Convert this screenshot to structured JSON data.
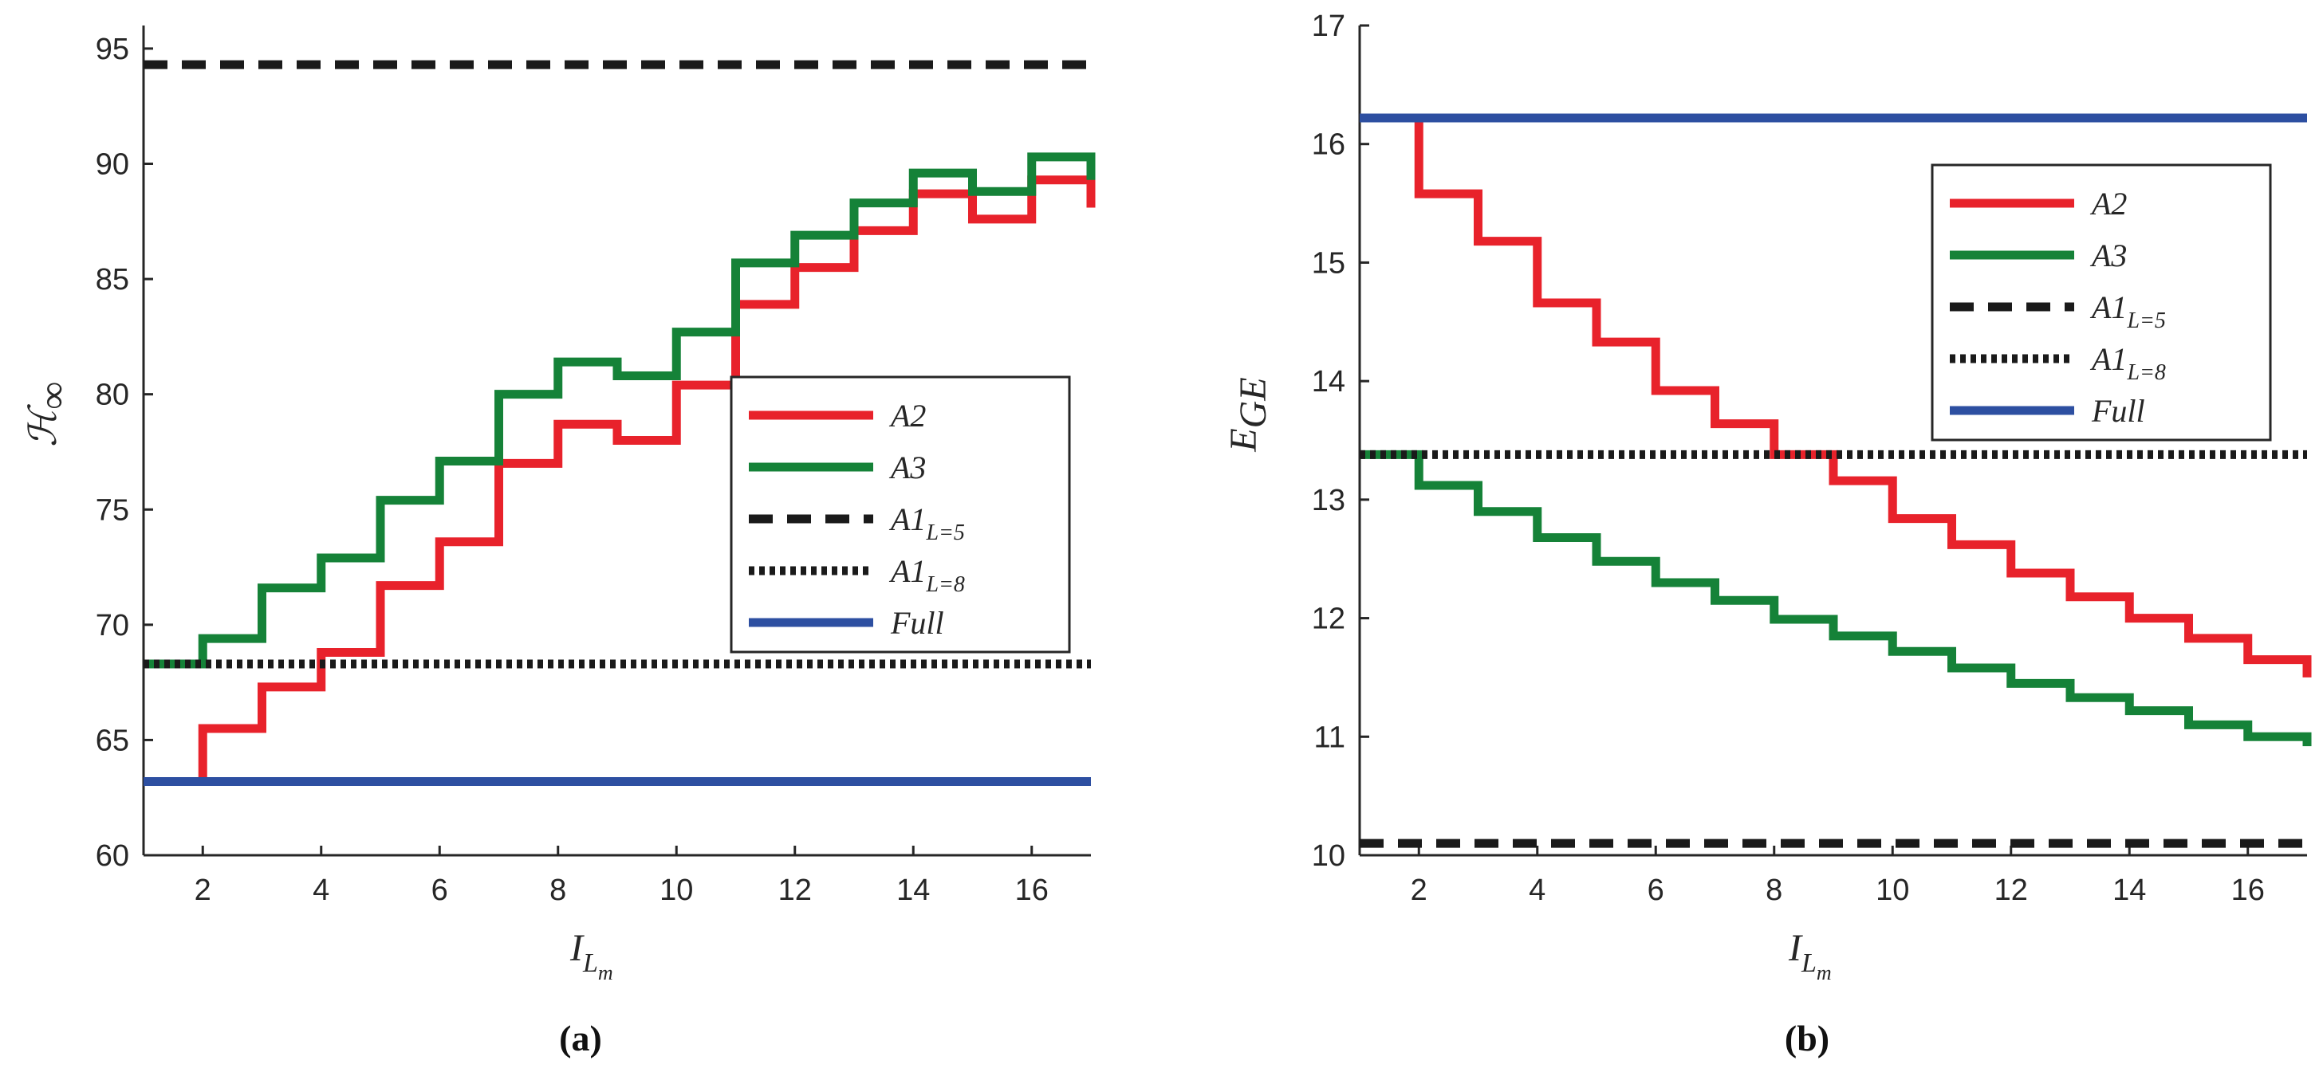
{
  "colors": {
    "A2": "#e8222b",
    "A3": "#158238",
    "full": "#2d4fa1",
    "black": "#1a1a1a"
  },
  "chart_data": [
    {
      "type": "line",
      "panel": "a",
      "caption": "(a)",
      "xlabel_main": "I",
      "xlabel_sub": "L",
      "xlabel_subsub": "m",
      "ylabel_main": "ℋ",
      "ylabel_sub": "∞",
      "xlim": [
        1,
        17
      ],
      "ylim": [
        60,
        96
      ],
      "xticks": [
        2,
        4,
        6,
        8,
        10,
        12,
        14,
        16
      ],
      "yticks": [
        60,
        65,
        70,
        75,
        80,
        85,
        90,
        95
      ],
      "step_x": [
        1,
        2,
        3,
        4,
        5,
        6,
        7,
        8,
        9,
        10,
        11,
        12,
        13,
        14,
        15,
        16,
        17
      ],
      "series": [
        {
          "name": "A2",
          "name_sub": "",
          "style": "step",
          "color": "#e8222b",
          "values": [
            63.2,
            65.5,
            67.3,
            68.8,
            71.7,
            73.6,
            77.0,
            78.7,
            78.0,
            80.4,
            83.9,
            85.5,
            87.1,
            88.7,
            87.6,
            89.3,
            88.1
          ]
        },
        {
          "name": "A3",
          "name_sub": "",
          "style": "step",
          "color": "#158238",
          "values": [
            68.3,
            69.4,
            71.6,
            72.9,
            75.4,
            77.1,
            80.0,
            81.4,
            80.8,
            82.7,
            85.7,
            86.9,
            88.3,
            89.6,
            88.8,
            90.3,
            89.3
          ]
        },
        {
          "name": "A1",
          "name_sub": "L=5",
          "style": "dashed",
          "color": "#1a1a1a",
          "values": [
            94.3
          ]
        },
        {
          "name": "A1",
          "name_sub": "L=8",
          "style": "dotted",
          "color": "#1a1a1a",
          "values": [
            68.3
          ]
        },
        {
          "name": "Full",
          "name_sub": "",
          "style": "solid",
          "color": "#2d4fa1",
          "values": [
            63.2
          ]
        }
      ],
      "legend": "center-right"
    },
    {
      "type": "line",
      "panel": "b",
      "caption": "(b)",
      "xlabel_main": "I",
      "xlabel_sub": "L",
      "xlabel_subsub": "m",
      "ylabel_main": "E",
      "ylabel_sub": "GE",
      "xlim": [
        1,
        17
      ],
      "ylim": [
        10,
        17
      ],
      "xticks": [
        2,
        4,
        6,
        8,
        10,
        12,
        14,
        16
      ],
      "yticks": [
        10,
        11,
        12,
        13,
        14,
        15,
        16,
        17
      ],
      "step_x": [
        1,
        2,
        3,
        4,
        5,
        6,
        7,
        8,
        9,
        10,
        11,
        12,
        13,
        14,
        15,
        16,
        17
      ],
      "series": [
        {
          "name": "A2",
          "name_sub": "",
          "style": "step",
          "color": "#e8222b",
          "values": [
            16.22,
            15.58,
            15.18,
            14.66,
            14.33,
            13.92,
            13.64,
            13.38,
            13.16,
            12.84,
            12.62,
            12.38,
            12.18,
            12.0,
            11.83,
            11.65,
            11.5
          ]
        },
        {
          "name": "A3",
          "name_sub": "",
          "style": "step",
          "color": "#158238",
          "values": [
            13.38,
            13.12,
            12.9,
            12.68,
            12.48,
            12.3,
            12.15,
            11.99,
            11.85,
            11.72,
            11.58,
            11.45,
            11.33,
            11.22,
            11.1,
            11.0,
            10.92
          ]
        },
        {
          "name": "A1",
          "name_sub": "L=5",
          "style": "dashed",
          "color": "#1a1a1a",
          "values": [
            10.1
          ]
        },
        {
          "name": "A1",
          "name_sub": "L=8",
          "style": "dotted",
          "color": "#1a1a1a",
          "values": [
            13.38
          ]
        },
        {
          "name": "Full",
          "name_sub": "",
          "style": "solid",
          "color": "#2d4fa1",
          "values": [
            16.22
          ]
        }
      ],
      "legend": "top-right"
    }
  ]
}
